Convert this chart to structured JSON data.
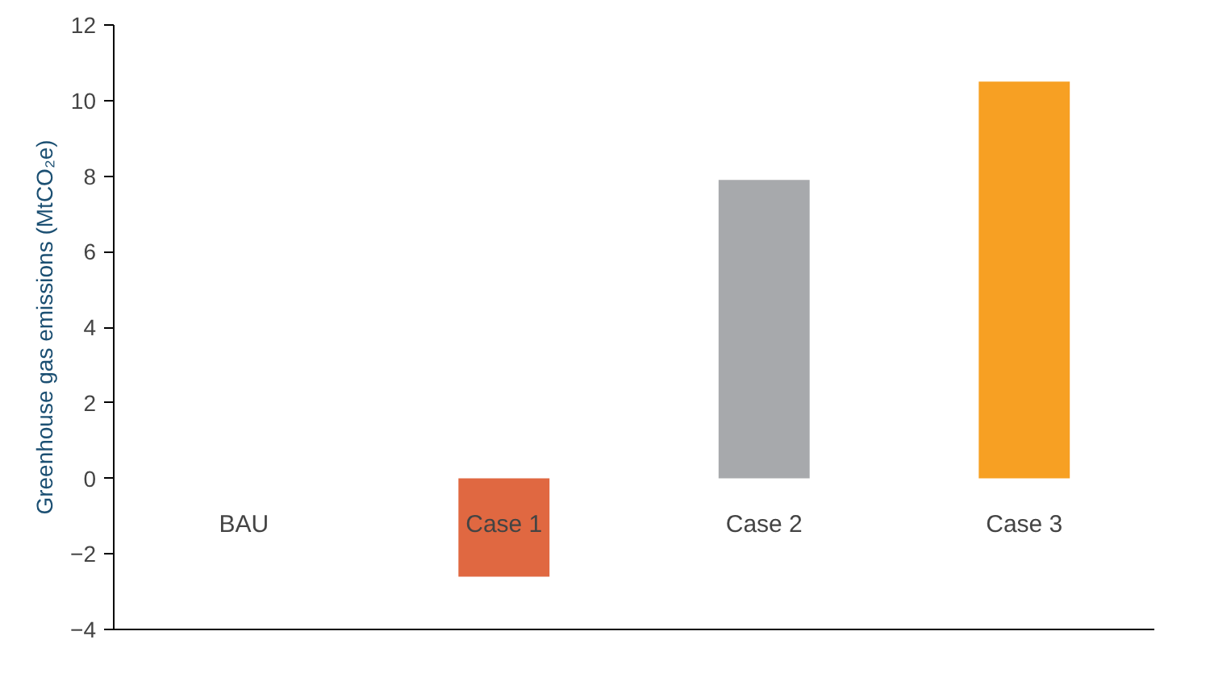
{
  "chart_data": {
    "type": "bar",
    "ylabel": "Greenhouse gas emissions (MtCO₂e)",
    "categories": [
      "BAU",
      "Case 1",
      "Case 2",
      "Case 3"
    ],
    "values": [
      0,
      -2.6,
      7.9,
      10.5
    ],
    "colors": [
      "#a7a9ac",
      "#e06841",
      "#a7a9ac",
      "#f7a023"
    ],
    "ylim": [
      -4,
      12
    ],
    "yticks": [
      {
        "value": -4,
        "label": "−4"
      },
      {
        "value": -2,
        "label": "−2"
      },
      0,
      2,
      4,
      6,
      8,
      10,
      12
    ],
    "grid": false
  }
}
